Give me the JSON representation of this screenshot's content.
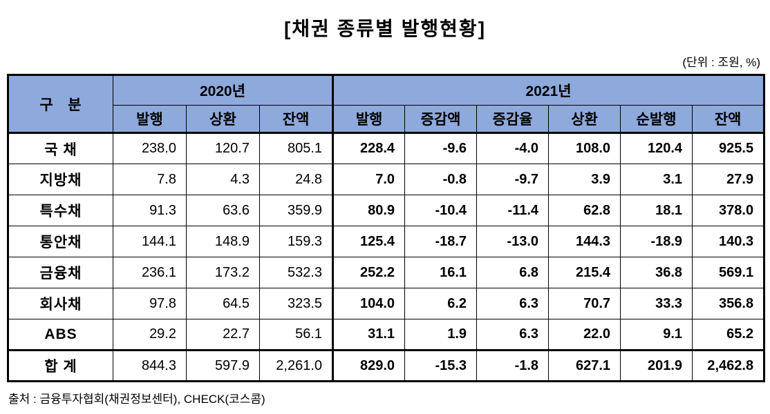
{
  "title": "[채권 종류별 발행현황]",
  "unit_note": "(단위 : 조원, %)",
  "source": "출처 : 금융투자협회(채권정보센터), CHECK(코스콤)",
  "colors": {
    "header_bg": "#8EA9DB",
    "border": "#000000",
    "background": "#FFFFFF"
  },
  "chart_data": {
    "type": "table",
    "header": {
      "group_col": "구   분",
      "groups": [
        {
          "label": "2020년",
          "span": 3
        },
        {
          "label": "2021년",
          "span": 6
        }
      ],
      "subheaders_2020": [
        "발행",
        "상환",
        "잔액"
      ],
      "subheaders_2021": [
        "발행",
        "증감액",
        "증감율",
        "상환",
        "순발행",
        "잔액"
      ]
    },
    "rows": [
      {
        "label": "국 채",
        "v2020": [
          "238.0",
          "120.7",
          "805.1"
        ],
        "v2021": [
          "228.4",
          "-9.6",
          "-4.0",
          "108.0",
          "120.4",
          "925.5"
        ]
      },
      {
        "label": "지방채",
        "v2020": [
          "7.8",
          "4.3",
          "24.8"
        ],
        "v2021": [
          "7.0",
          "-0.8",
          "-9.7",
          "3.9",
          "3.1",
          "27.9"
        ]
      },
      {
        "label": "특수채",
        "v2020": [
          "91.3",
          "63.6",
          "359.9"
        ],
        "v2021": [
          "80.9",
          "-10.4",
          "-11.4",
          "62.8",
          "18.1",
          "378.0"
        ]
      },
      {
        "label": "통안채",
        "v2020": [
          "144.1",
          "148.9",
          "159.3"
        ],
        "v2021": [
          "125.4",
          "-18.7",
          "-13.0",
          "144.3",
          "-18.9",
          "140.3"
        ]
      },
      {
        "label": "금융채",
        "v2020": [
          "236.1",
          "173.2",
          "532.3"
        ],
        "v2021": [
          "252.2",
          "16.1",
          "6.8",
          "215.4",
          "36.8",
          "569.1"
        ]
      },
      {
        "label": "회사채",
        "v2020": [
          "97.8",
          "64.5",
          "323.5"
        ],
        "v2021": [
          "104.0",
          "6.2",
          "6.3",
          "70.7",
          "33.3",
          "356.8"
        ]
      },
      {
        "label": "ABS",
        "v2020": [
          "29.2",
          "22.7",
          "56.1"
        ],
        "v2021": [
          "31.1",
          "1.9",
          "6.3",
          "22.0",
          "9.1",
          "65.2"
        ]
      },
      {
        "label": "합 계",
        "v2020": [
          "844.3",
          "597.9",
          "2,261.0"
        ],
        "v2021": [
          "829.0",
          "-15.3",
          "-1.8",
          "627.1",
          "201.9",
          "2,462.8"
        ],
        "is_total": true
      }
    ]
  }
}
